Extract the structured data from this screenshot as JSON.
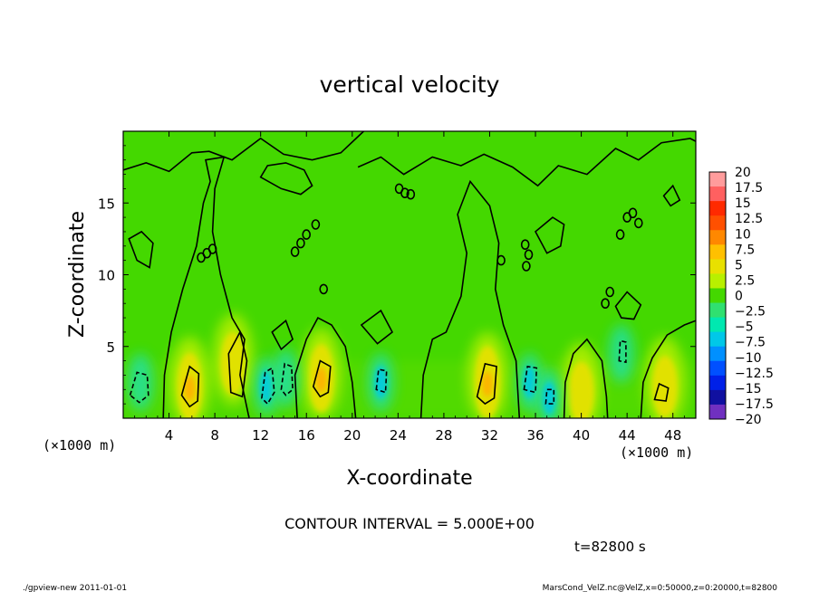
{
  "chart_data": {
    "type": "heatmap",
    "title": "vertical velocity",
    "xlabel": "X-coordinate",
    "ylabel": "Z-coordinate",
    "x_unit": "(×1000 m)",
    "y_unit": "(×1000 m)",
    "xlim": [
      0,
      50
    ],
    "ylim": [
      0,
      20
    ],
    "x_ticks": [
      4,
      8,
      12,
      16,
      20,
      24,
      28,
      32,
      36,
      40,
      44,
      48
    ],
    "y_ticks": [
      5,
      10,
      15
    ],
    "contour_interval_text": "CONTOUR INTERVAL = 5.000E+00",
    "time_text": "t=82800 s",
    "colorbar": {
      "levels": [
        20,
        17.5,
        15,
        12.5,
        10,
        7.5,
        5,
        2.5,
        0,
        -2.5,
        -5,
        -7.5,
        -10,
        -12.5,
        -15,
        -17.5,
        -20
      ],
      "labels": [
        "20",
        "17.5",
        "15",
        "12.5",
        "10",
        "7.5",
        "5",
        "2.5",
        "0",
        "−2.5",
        "−5",
        "−7.5",
        "−10",
        "−12.5",
        "−15",
        "−17.5",
        "−20"
      ],
      "colors": [
        "#ff9c9c",
        "#ff6060",
        "#ff2a00",
        "#ff5000",
        "#ff8800",
        "#ffc000",
        "#e8e000",
        "#b8f000",
        "#44d800",
        "#30e070",
        "#00e8b0",
        "#00c8e8",
        "#0090ff",
        "#0050ff",
        "#0020e8",
        "#1010a0",
        "#7030c0"
      ]
    },
    "features": [
      {
        "type": "updraft",
        "x": 5.8,
        "z": 2.2,
        "peak": 7.5
      },
      {
        "type": "updraft",
        "x": 9.6,
        "z": 3.8,
        "peak": 5
      },
      {
        "type": "updraft",
        "x": 17.3,
        "z": 2.8,
        "peak": 7.5
      },
      {
        "type": "updraft",
        "x": 31.8,
        "z": 2.5,
        "peak": 10
      },
      {
        "type": "updraft",
        "x": 40.0,
        "z": 1.8,
        "peak": 4
      },
      {
        "type": "updraft",
        "x": 47.3,
        "z": 2.2,
        "peak": 4
      },
      {
        "type": "downdraft",
        "x": 1.5,
        "z": 2.5,
        "peak": -4
      },
      {
        "type": "downdraft",
        "x": 12.5,
        "z": 2.2,
        "peak": -6
      },
      {
        "type": "downdraft",
        "x": 14.2,
        "z": 2.8,
        "peak": -4
      },
      {
        "type": "downdraft",
        "x": 22.5,
        "z": 2.5,
        "peak": -5
      },
      {
        "type": "downdraft",
        "x": 35.5,
        "z": 2.5,
        "peak": -5
      },
      {
        "type": "downdraft",
        "x": 37.2,
        "z": 1.4,
        "peak": -5
      },
      {
        "type": "downdraft",
        "x": 43.5,
        "z": 4.5,
        "peak": -4
      }
    ]
  },
  "footer": {
    "left": "./gpview-new  2011-01-01",
    "right": "MarsCond_VelZ.nc@VelZ,x=0:50000,z=0:20000,t=82800"
  }
}
